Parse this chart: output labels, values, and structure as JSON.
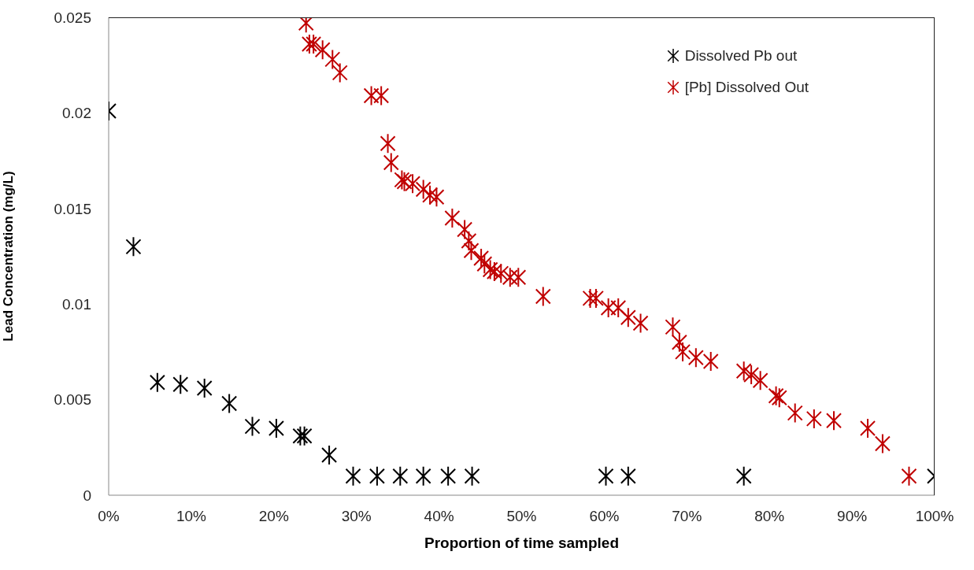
{
  "chart_data": {
    "type": "scatter",
    "xlabel": "Proportion of time sampled",
    "ylabel": "Lead Concentration (mg/L)",
    "xlim": [
      0,
      100
    ],
    "xticks": [
      {
        "value": 0,
        "label": "0%"
      },
      {
        "value": 10,
        "label": "10%"
      },
      {
        "value": 20,
        "label": "20%"
      },
      {
        "value": 30,
        "label": "30%"
      },
      {
        "value": 40,
        "label": "40%"
      },
      {
        "value": 50,
        "label": "50%"
      },
      {
        "value": 60,
        "label": "60%"
      },
      {
        "value": 70,
        "label": "70%"
      },
      {
        "value": 80,
        "label": "80%"
      },
      {
        "value": 90,
        "label": "90%"
      },
      {
        "value": 100,
        "label": "100%"
      }
    ],
    "ylim": [
      0,
      0.025
    ],
    "yticks": [
      0,
      0.005,
      0.01,
      0.015,
      0.02,
      0.025
    ],
    "grid": false,
    "legend": "top right",
    "marker": "cross",
    "series": [
      {
        "name": "Dissolved Pb out",
        "color": "#000000",
        "x": [
          0,
          3.0,
          5.9,
          8.7,
          11.6,
          14.6,
          17.4,
          20.3,
          23.2,
          23.7,
          26.7,
          29.6,
          32.5,
          35.3,
          38.1,
          41.1,
          44.0,
          60.2,
          62.9,
          76.9,
          100
        ],
        "values": [
          0.0201,
          0.013,
          0.0059,
          0.0058,
          0.0056,
          0.0048,
          0.0036,
          0.0035,
          0.0031,
          0.0031,
          0.0021,
          0.001,
          0.001,
          0.001,
          0.001,
          0.001,
          0.001,
          0.001,
          0.001,
          0.001,
          0.001
        ]
      },
      {
        "name": "[Pb] Dissolved Out",
        "color": "#c00000",
        "x": [
          23.9,
          24.3,
          24.8,
          25.9,
          27.1,
          28.0,
          31.8,
          33.0,
          33.8,
          34.2,
          35.5,
          35.8,
          36.8,
          38.1,
          38.9,
          39.7,
          41.6,
          43.1,
          43.6,
          43.9,
          45.1,
          45.5,
          46.2,
          46.7,
          47.5,
          48.6,
          49.6,
          52.6,
          58.3,
          59.0,
          60.5,
          61.7,
          62.9,
          64.4,
          68.3,
          69.1,
          69.5,
          71.1,
          72.9,
          76.9,
          77.8,
          78.9,
          80.8,
          81.2,
          83.1,
          85.4,
          87.8,
          91.9,
          93.7,
          96.9
        ],
        "values": [
          0.0247,
          0.0236,
          0.0236,
          0.0233,
          0.0228,
          0.0221,
          0.0209,
          0.0209,
          0.0184,
          0.0174,
          0.0165,
          0.0164,
          0.0163,
          0.016,
          0.0157,
          0.0156,
          0.0145,
          0.0139,
          0.0133,
          0.0128,
          0.0124,
          0.0121,
          0.0118,
          0.0117,
          0.0116,
          0.0114,
          0.0114,
          0.0104,
          0.0103,
          0.0103,
          0.0098,
          0.0098,
          0.0093,
          0.009,
          0.0088,
          0.008,
          0.0075,
          0.0072,
          0.007,
          0.0065,
          0.0063,
          0.006,
          0.0052,
          0.0051,
          0.0043,
          0.004,
          0.0039,
          0.0035,
          0.0027,
          0.001
        ]
      }
    ]
  }
}
